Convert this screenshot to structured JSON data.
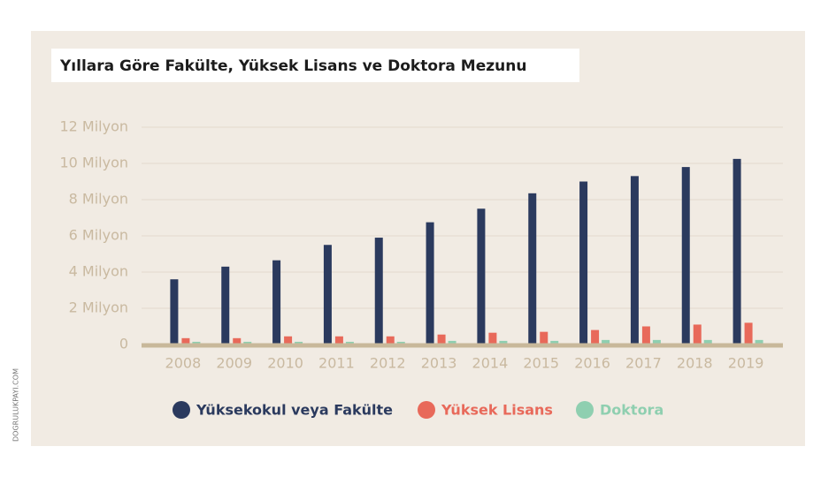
{
  "chart_data": {
    "type": "bar",
    "title": "Yıllara Göre Fakülte, Yüksek Lisans ve Doktora Mezunu",
    "source": "DOGRULUKPAYI.COM",
    "categories": [
      "2008",
      "2009",
      "2010",
      "2011",
      "2012",
      "2013",
      "2014",
      "2015",
      "2016",
      "2017",
      "2018",
      "2019"
    ],
    "series": [
      {
        "name": "Yüksekokul veya Fakülte",
        "color": "#2b3a5e",
        "values": [
          3.6,
          4.3,
          4.65,
          5.5,
          5.9,
          6.75,
          7.5,
          8.35,
          9.0,
          9.3,
          9.8,
          10.25
        ]
      },
      {
        "name": "Yüksek Lisans",
        "color": "#e8695a",
        "values": [
          0.35,
          0.35,
          0.45,
          0.45,
          0.45,
          0.55,
          0.65,
          0.7,
          0.8,
          1.0,
          1.1,
          1.2
        ]
      },
      {
        "name": "Doktora",
        "color": "#8fcfb0",
        "values": [
          0.15,
          0.15,
          0.15,
          0.15,
          0.15,
          0.2,
          0.2,
          0.2,
          0.25,
          0.25,
          0.25,
          0.25
        ]
      }
    ],
    "ylim": [
      0,
      12
    ],
    "yticks": [
      0,
      {
        "value": 2,
        "label": "2 Milyon"
      },
      {
        "value": 4,
        "label": "4 Milyon"
      },
      {
        "value": 6,
        "label": "6 Milyon"
      },
      {
        "value": 8,
        "label": "8 Milyon"
      },
      {
        "value": 10,
        "label": "10 Milyon"
      },
      {
        "value": 12,
        "label": "12 Milyon"
      }
    ],
    "grid": true
  }
}
